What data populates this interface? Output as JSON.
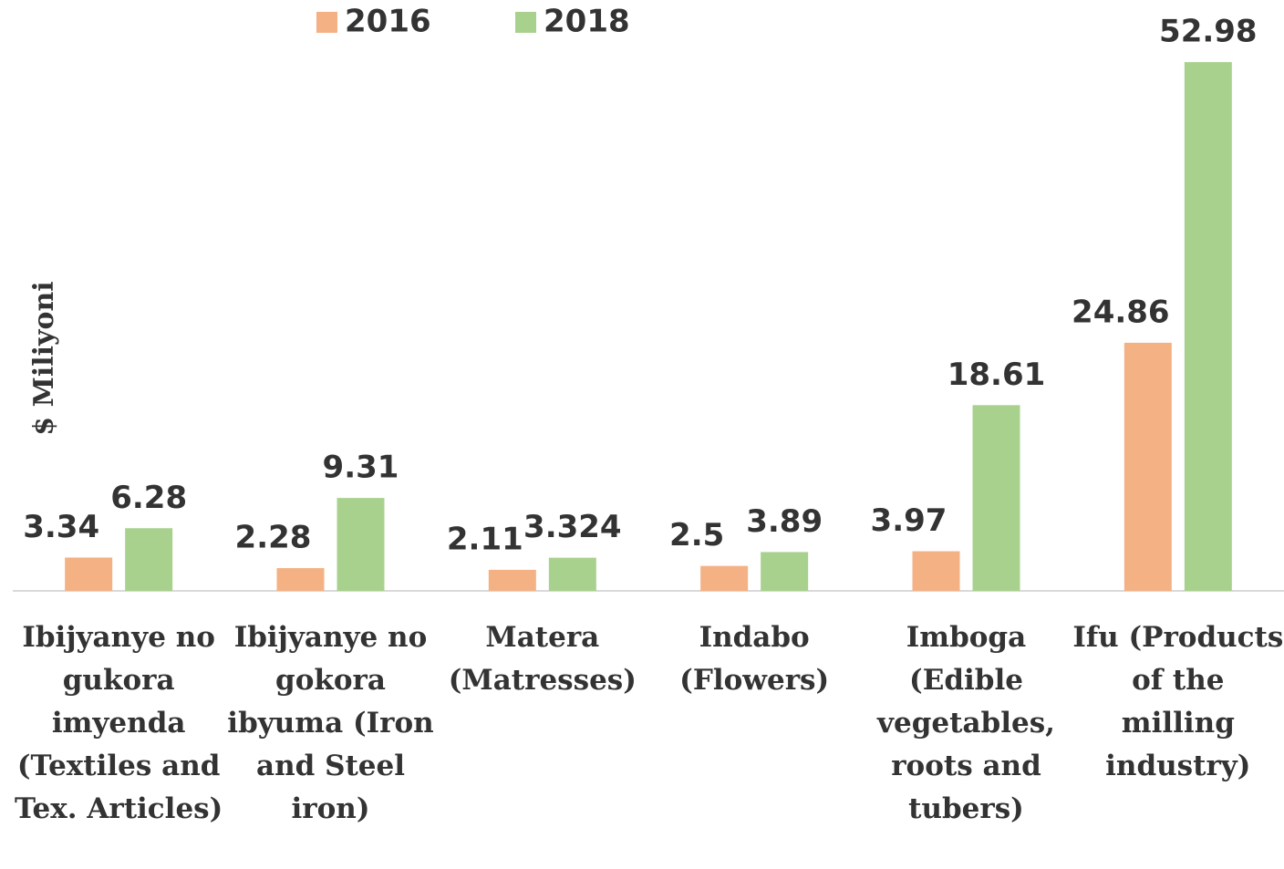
{
  "chart_data": {
    "type": "bar",
    "y_label": "$ Miliyoni",
    "categories": [
      "Ibijyanye no gukora imyenda (Textiles and Tex. Articles)",
      "Ibijyanye no gokora ibyuma (Iron and Steel iron)",
      "Matera (Matresses)",
      "Indabo (Flowers)",
      "Imboga (Edible vegetables, roots and tubers)",
      "Ifu (Products of the milling industry)"
    ],
    "series": [
      {
        "name": "2016",
        "color": "#f4b183",
        "values": [
          3.34,
          2.28,
          2.11,
          2.5,
          3.97,
          24.86
        ]
      },
      {
        "name": "2018",
        "color": "#a9d18e",
        "values": [
          6.28,
          9.31,
          3.324,
          3.89,
          18.61,
          52.98
        ]
      }
    ],
    "ylim": [
      0,
      55
    ],
    "legend": "top"
  }
}
